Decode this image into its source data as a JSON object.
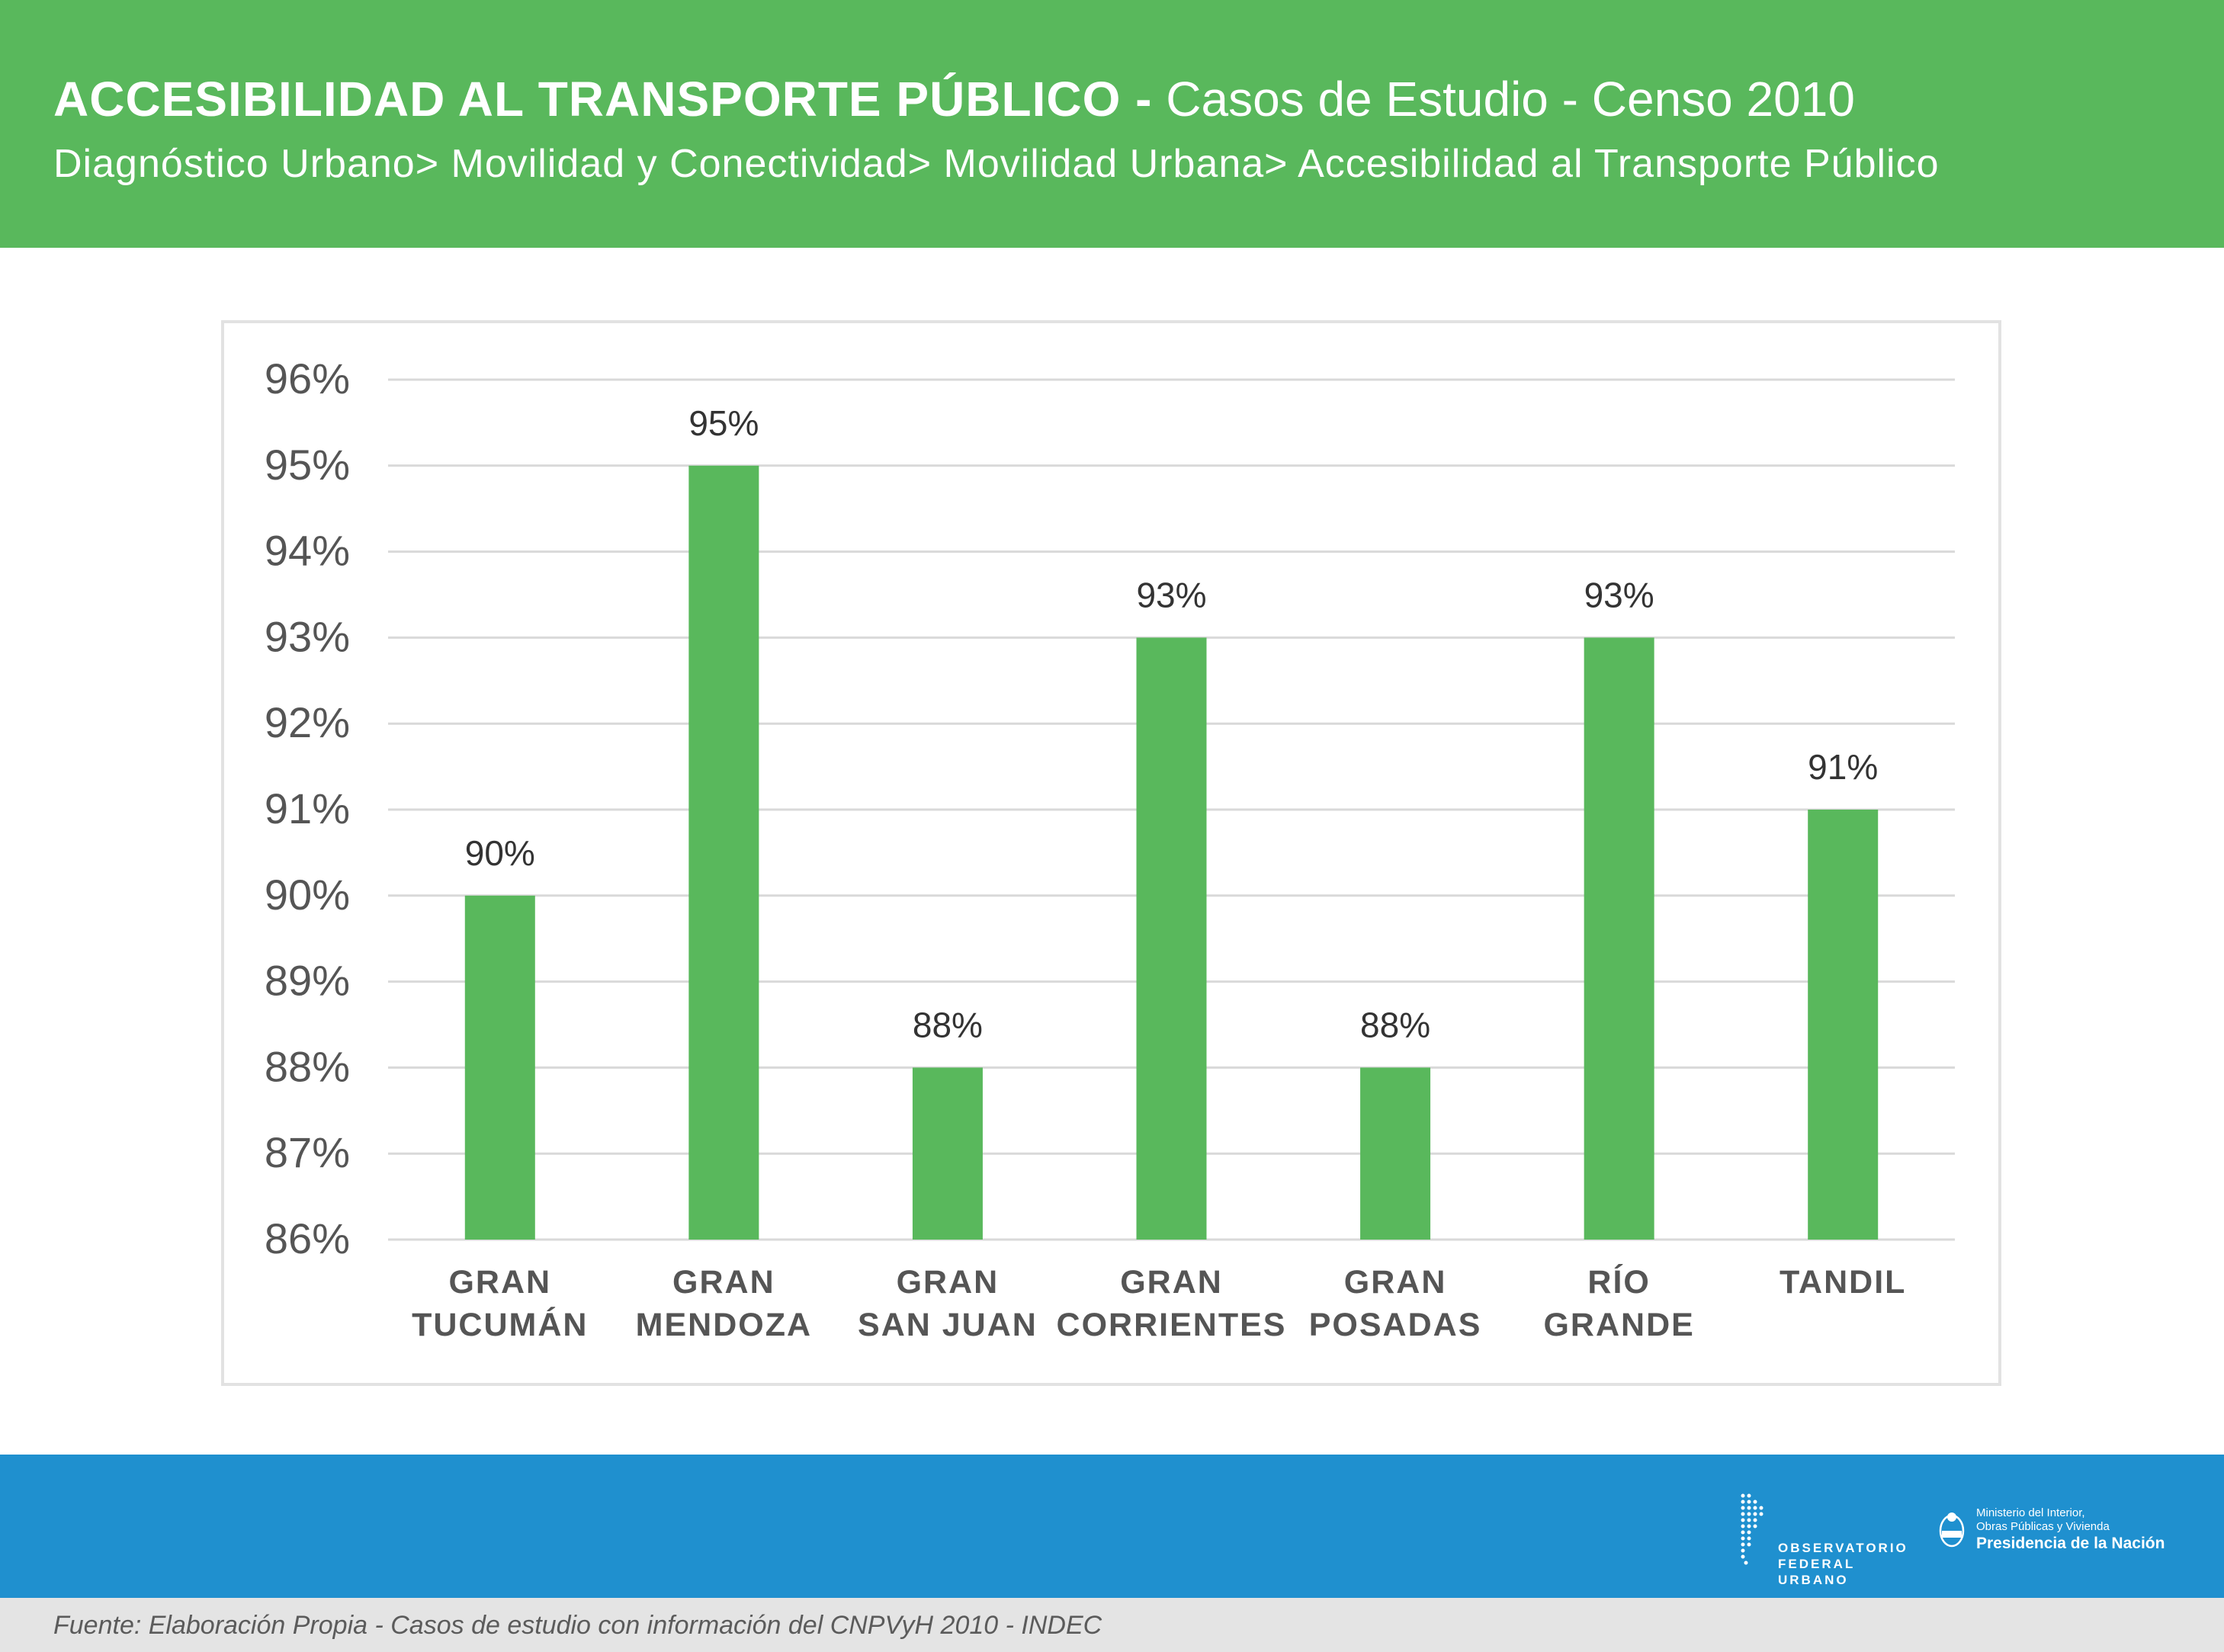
{
  "header": {
    "title_bold": "ACCESIBILIDAD AL TRANSPORTE PÚBLICO -",
    "title_light": "Casos de Estudio - Censo 2010",
    "breadcrumb": "Diagnóstico Urbano> Movilidad y Conectividad> Movilidad Urbana> Accesibilidad al Transporte Público"
  },
  "chart_data": {
    "type": "bar",
    "categories": [
      [
        "GRAN",
        "TUCUMÁN"
      ],
      [
        "GRAN",
        "MENDOZA"
      ],
      [
        "GRAN",
        "SAN JUAN"
      ],
      [
        "GRAN",
        "CORRIENTES"
      ],
      [
        "GRAN",
        "POSADAS"
      ],
      [
        "RÍO",
        "GRANDE"
      ],
      [
        "TANDIL"
      ]
    ],
    "values": [
      90,
      95,
      88,
      93,
      88,
      93,
      91
    ],
    "value_labels": [
      "90%",
      "95%",
      "88%",
      "93%",
      "88%",
      "93%",
      "91%"
    ],
    "y_ticks": [
      86,
      87,
      88,
      89,
      90,
      91,
      92,
      93,
      94,
      95,
      96
    ],
    "y_tick_labels": [
      "86%",
      "87%",
      "88%",
      "89%",
      "90%",
      "91%",
      "92%",
      "93%",
      "94%",
      "95%",
      "96%"
    ],
    "ylim": [
      86,
      96
    ],
    "grid": true,
    "legend": "none",
    "bar_color": "#59b85c",
    "grid_color": "#d9d9d9",
    "tick_label_color": "#555555",
    "value_label_color": "#333333"
  },
  "footer": {
    "ofu_lines": [
      "OBSERVATORIO",
      "FEDERAL",
      "URBANO"
    ],
    "ministerio_line1": "Ministerio del Interior,",
    "ministerio_line2": "Obras Públicas y Vivienda",
    "ministerio_line3": "Presidencia de la Nación",
    "source": "Fuente: Elaboración Propia - Casos de estudio con información del CNPVyH 2010 - INDEC"
  },
  "colors": {
    "header_green": "#59b85c",
    "footer_blue": "#1f90cf",
    "source_gray": "#e4e4e4"
  }
}
